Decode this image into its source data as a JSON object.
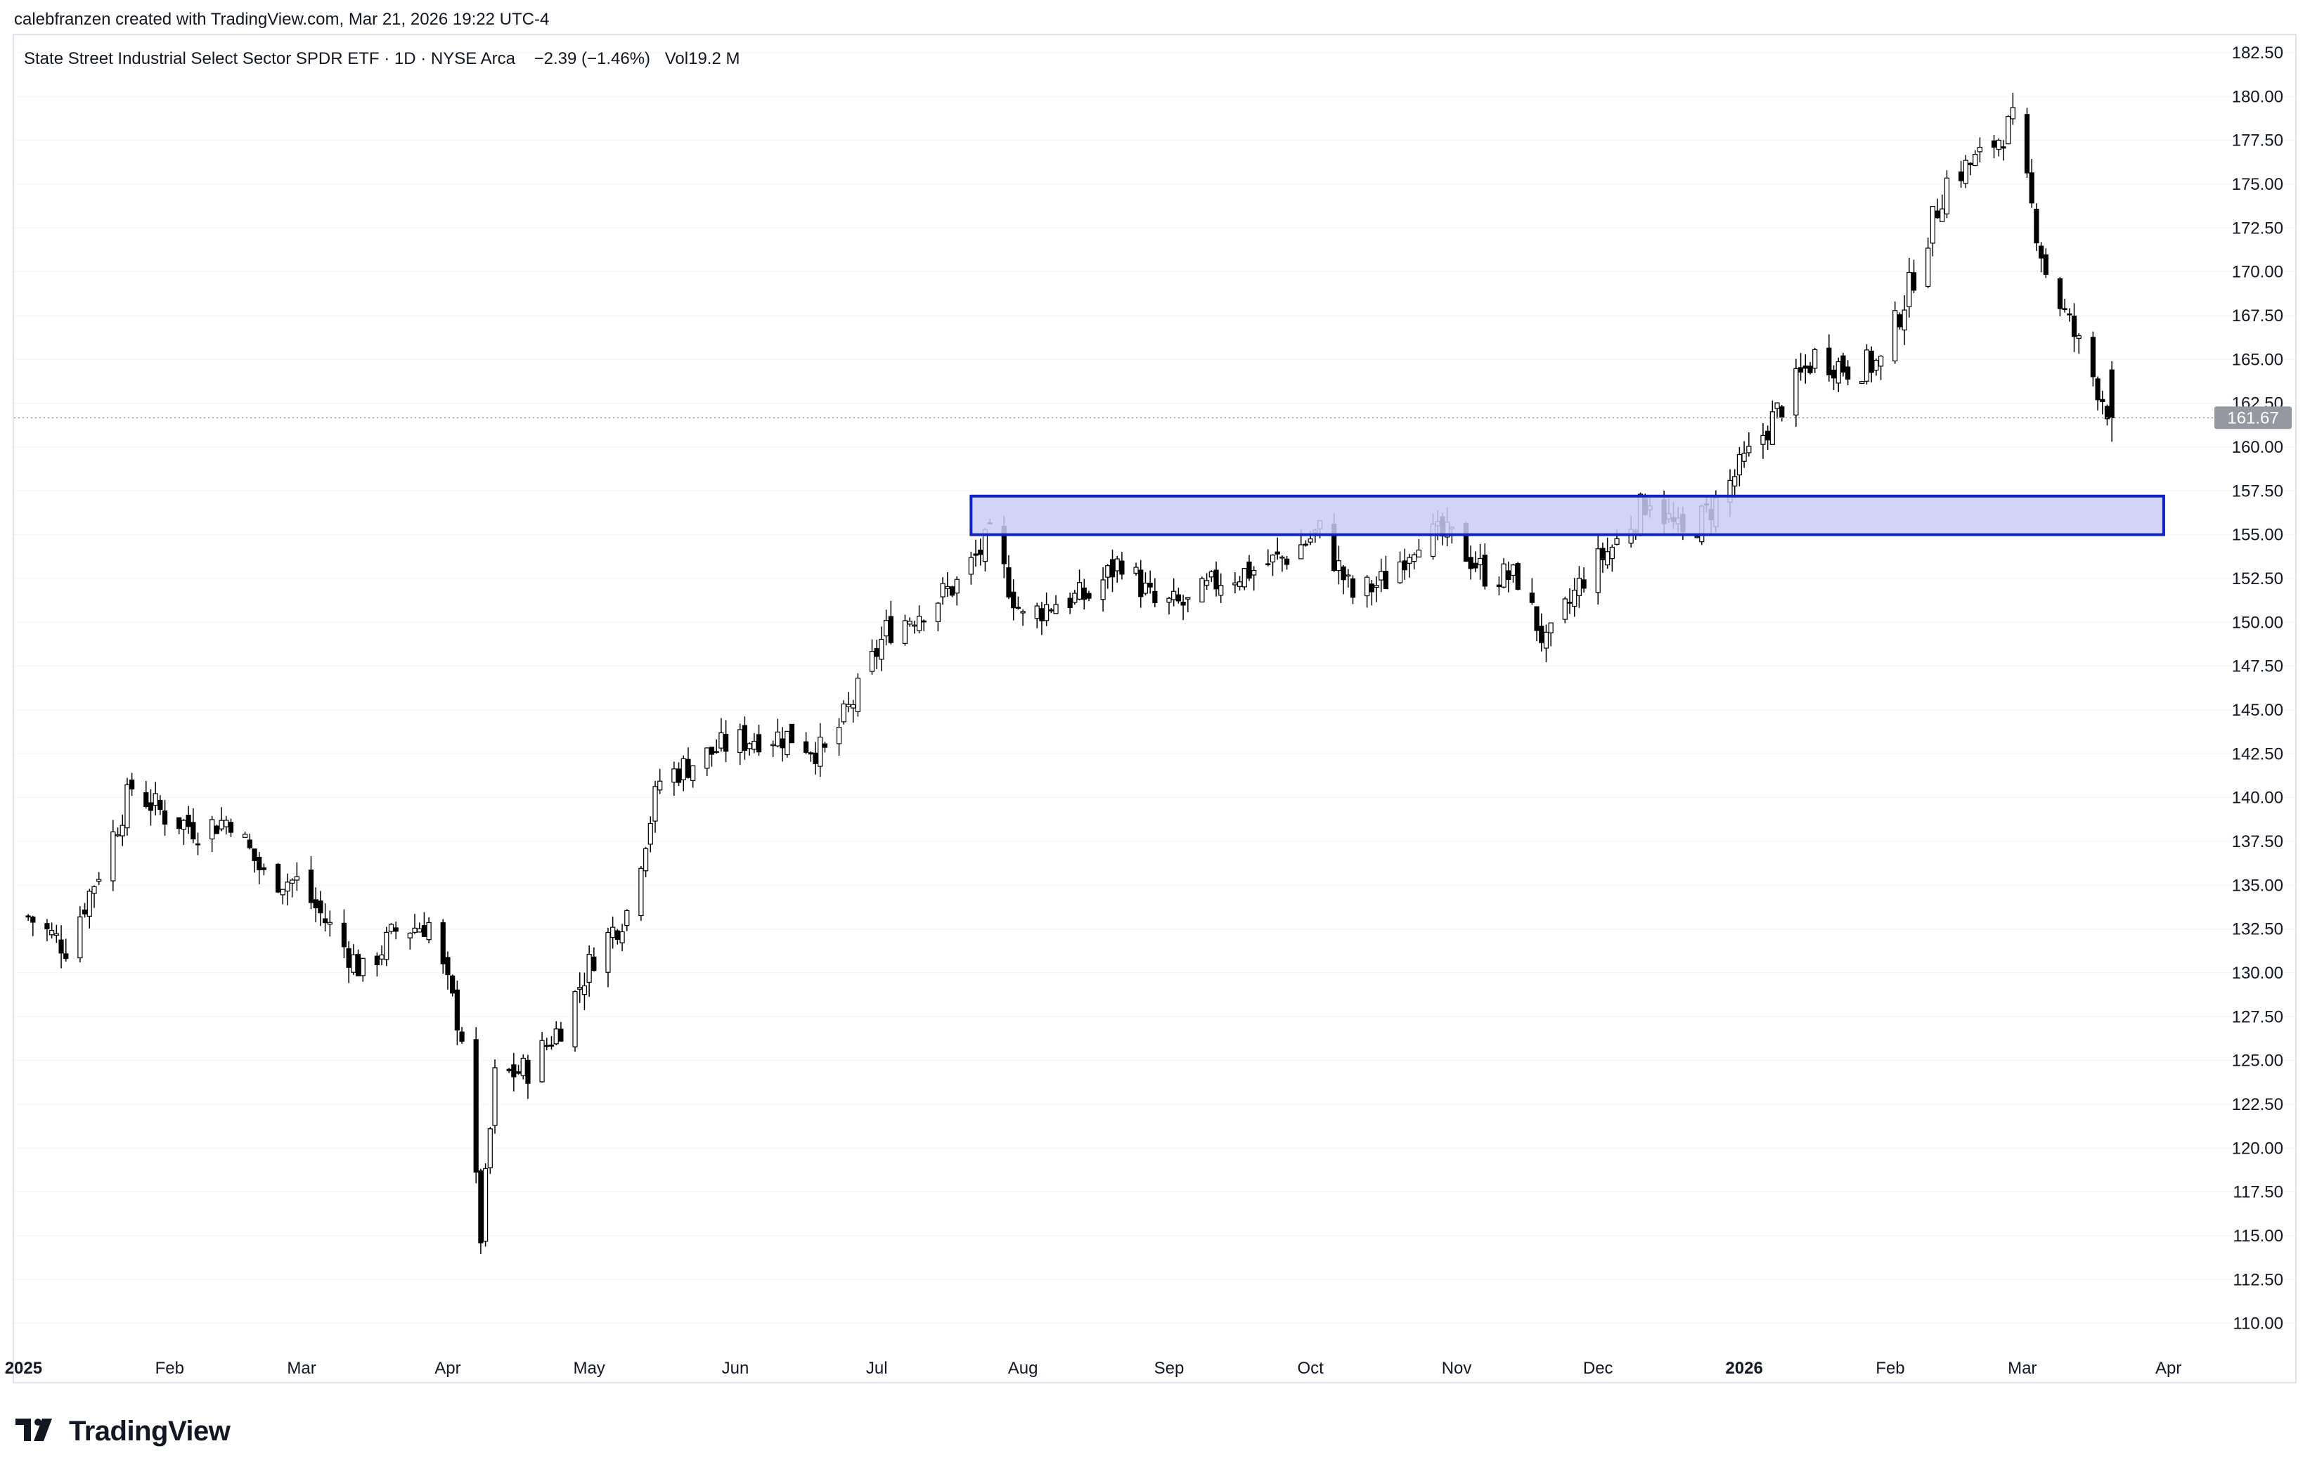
{
  "header": {
    "attribution": "calebfranzen created with TradingView.com, Mar 21, 2026 19:22 UTC-4"
  },
  "legend": {
    "symbol": "State Street Industrial Select Sector SPDR ETF · 1D · NYSE Arca",
    "change": "−2.39 (−1.46%)",
    "volume_label": "Vol",
    "volume_value": "19.2 M"
  },
  "footer": {
    "logo_text": "TradingView"
  },
  "colors": {
    "up_body": "#ffffff",
    "down_body": "#000000",
    "wick": "#000000",
    "zone_fill": "#c9ccf3",
    "zone_stroke": "#1121c4",
    "price_tag_bg": "#9598a1",
    "grid": "#f0f3fa"
  },
  "chart_data": {
    "type": "candlestick",
    "title": "State Street Industrial Select Sector SPDR ETF · 1D · NYSE Arca",
    "x_tick_labels": [
      {
        "label": "2025",
        "bold": true
      },
      {
        "label": "Feb",
        "bold": false
      },
      {
        "label": "Mar",
        "bold": false
      },
      {
        "label": "Apr",
        "bold": false
      },
      {
        "label": "May",
        "bold": false
      },
      {
        "label": "Jun",
        "bold": false
      },
      {
        "label": "Jul",
        "bold": false
      },
      {
        "label": "Aug",
        "bold": false
      },
      {
        "label": "Sep",
        "bold": false
      },
      {
        "label": "Oct",
        "bold": false
      },
      {
        "label": "Nov",
        "bold": false
      },
      {
        "label": "Dec",
        "bold": false
      },
      {
        "label": "2026",
        "bold": true
      },
      {
        "label": "Feb",
        "bold": false
      },
      {
        "label": "Mar",
        "bold": false
      },
      {
        "label": "Apr",
        "bold": false
      }
    ],
    "y_ticks": [
      "110.00",
      "112.50",
      "115.00",
      "117.50",
      "120.00",
      "122.50",
      "125.00",
      "127.50",
      "130.00",
      "132.50",
      "135.00",
      "137.50",
      "140.00",
      "142.50",
      "145.00",
      "147.50",
      "150.00",
      "152.50",
      "155.00",
      "157.50",
      "160.00",
      "162.50",
      "165.00",
      "167.50",
      "170.00",
      "172.50",
      "175.00",
      "177.50",
      "180.00",
      "182.50"
    ],
    "ylim": [
      108.5,
      183.5
    ],
    "last_price": 161.67,
    "last_price_label": "161.67",
    "zone": {
      "start": "2025-07-21",
      "end": "2026-03-31",
      "low": 155.0,
      "high": 157.2
    },
    "monthly_closes": [
      {
        "date": "2025-01-02",
        "close": 133.2
      },
      {
        "date": "2025-01-10",
        "close": 131.5
      },
      {
        "date": "2025-01-17",
        "close": 135.8
      },
      {
        "date": "2025-01-24",
        "close": 140.6
      },
      {
        "date": "2025-01-31",
        "close": 139.0
      },
      {
        "date": "2025-02-07",
        "close": 138.2
      },
      {
        "date": "2025-02-14",
        "close": 138.8
      },
      {
        "date": "2025-02-21",
        "close": 135.5
      },
      {
        "date": "2025-02-28",
        "close": 135.2
      },
      {
        "date": "2025-03-07",
        "close": 132.6
      },
      {
        "date": "2025-03-14",
        "close": 130.0
      },
      {
        "date": "2025-03-21",
        "close": 132.4
      },
      {
        "date": "2025-03-28",
        "close": 132.8
      },
      {
        "date": "2025-04-04",
        "close": 126.5
      },
      {
        "date": "2025-04-08",
        "close": 115.0
      },
      {
        "date": "2025-04-11",
        "close": 124.0
      },
      {
        "date": "2025-04-18",
        "close": 124.5
      },
      {
        "date": "2025-04-25",
        "close": 127.0
      },
      {
        "date": "2025-05-02",
        "close": 131.0
      },
      {
        "date": "2025-05-09",
        "close": 133.5
      },
      {
        "date": "2025-05-16",
        "close": 141.0
      },
      {
        "date": "2025-05-23",
        "close": 142.0
      },
      {
        "date": "2025-05-30",
        "close": 143.0
      },
      {
        "date": "2025-06-06",
        "close": 143.5
      },
      {
        "date": "2025-06-13",
        "close": 143.5
      },
      {
        "date": "2025-06-20",
        "close": 142.5
      },
      {
        "date": "2025-06-27",
        "close": 146.0
      },
      {
        "date": "2025-07-03",
        "close": 149.5
      },
      {
        "date": "2025-07-11",
        "close": 150.8
      },
      {
        "date": "2025-07-18",
        "close": 152.2
      },
      {
        "date": "2025-07-25",
        "close": 154.8
      },
      {
        "date": "2025-08-01",
        "close": 150.2
      },
      {
        "date": "2025-08-08",
        "close": 151.2
      },
      {
        "date": "2025-08-15",
        "close": 151.5
      },
      {
        "date": "2025-08-22",
        "close": 153.6
      },
      {
        "date": "2025-08-29",
        "close": 151.0
      },
      {
        "date": "2025-09-05",
        "close": 151.0
      },
      {
        "date": "2025-09-12",
        "close": 152.5
      },
      {
        "date": "2025-09-19",
        "close": 153.0
      },
      {
        "date": "2025-09-26",
        "close": 153.8
      },
      {
        "date": "2025-10-03",
        "close": 155.2
      },
      {
        "date": "2025-10-10",
        "close": 151.5
      },
      {
        "date": "2025-10-17",
        "close": 152.4
      },
      {
        "date": "2025-10-24",
        "close": 155.0
      },
      {
        "date": "2025-10-31",
        "close": 154.8
      },
      {
        "date": "2025-11-07",
        "close": 152.8
      },
      {
        "date": "2025-11-14",
        "close": 152.5
      },
      {
        "date": "2025-11-20",
        "close": 148.6
      },
      {
        "date": "2025-11-28",
        "close": 152.6
      },
      {
        "date": "2025-12-05",
        "close": 154.6
      },
      {
        "date": "2025-12-12",
        "close": 157.2
      },
      {
        "date": "2025-12-19",
        "close": 154.8
      },
      {
        "date": "2025-12-26",
        "close": 156.8
      },
      {
        "date": "2026-01-02",
        "close": 159.5
      },
      {
        "date": "2026-01-09",
        "close": 162.4
      },
      {
        "date": "2026-01-16",
        "close": 165.2
      },
      {
        "date": "2026-01-23",
        "close": 164.5
      },
      {
        "date": "2026-01-30",
        "close": 164.8
      },
      {
        "date": "2026-02-06",
        "close": 169.8
      },
      {
        "date": "2026-02-13",
        "close": 175.2
      },
      {
        "date": "2026-02-20",
        "close": 176.5
      },
      {
        "date": "2026-02-27",
        "close": 178.5
      },
      {
        "date": "2026-03-06",
        "close": 170.0
      },
      {
        "date": "2026-03-13",
        "close": 165.8
      },
      {
        "date": "2026-03-20",
        "close": 161.67
      }
    ]
  }
}
